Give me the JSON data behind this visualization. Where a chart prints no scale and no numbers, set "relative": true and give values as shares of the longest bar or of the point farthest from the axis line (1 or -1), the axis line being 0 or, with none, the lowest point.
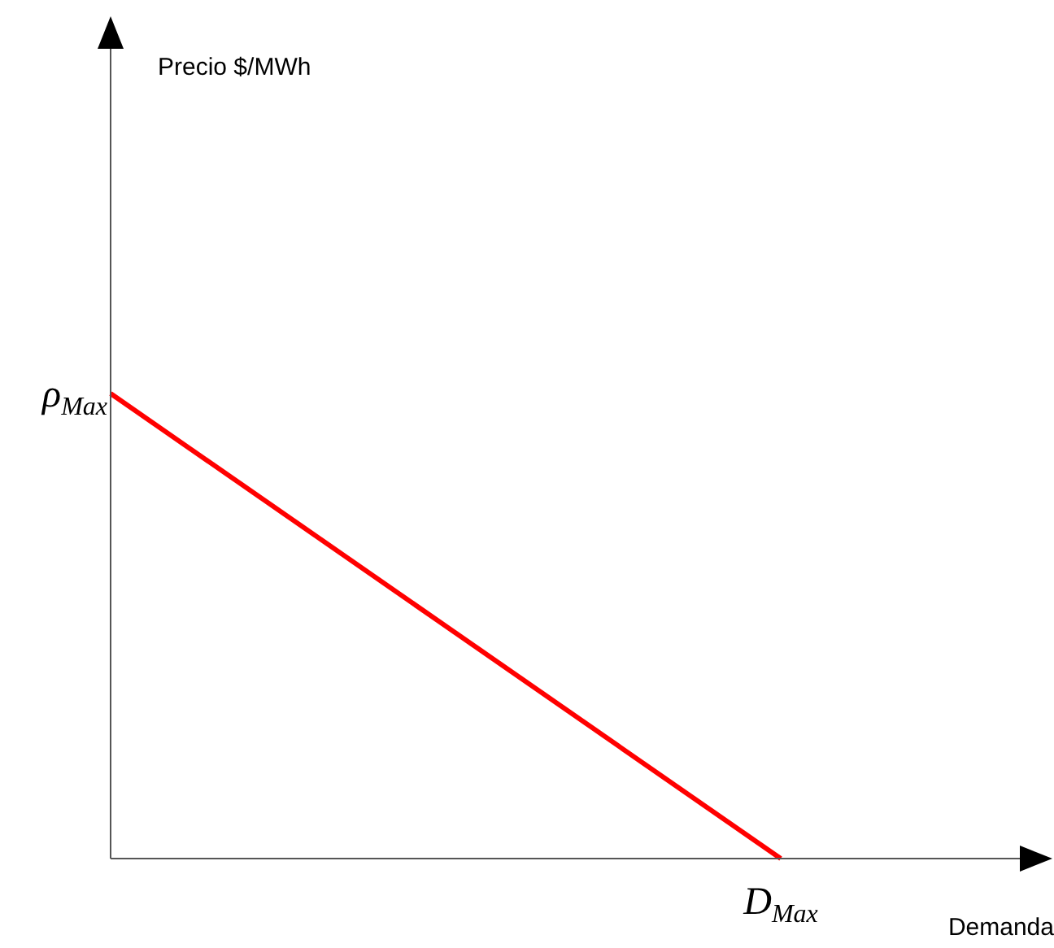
{
  "chart_data": {
    "type": "line",
    "xlabel": "Demanda",
    "categories": [
      null,
      null
    ],
    "series": [
      {
        "color": "#ff0000",
        "values": [
          1,
          0
        ]
      }
    ],
    "relative": true,
    "annotations": [
      "Precio $/MWh",
      "ρ$_{Max}$",
      {
        "text": "D$_{Max}$",
        "y": 0
      }
    ],
    "grid": false,
    "legend": false
  }
}
